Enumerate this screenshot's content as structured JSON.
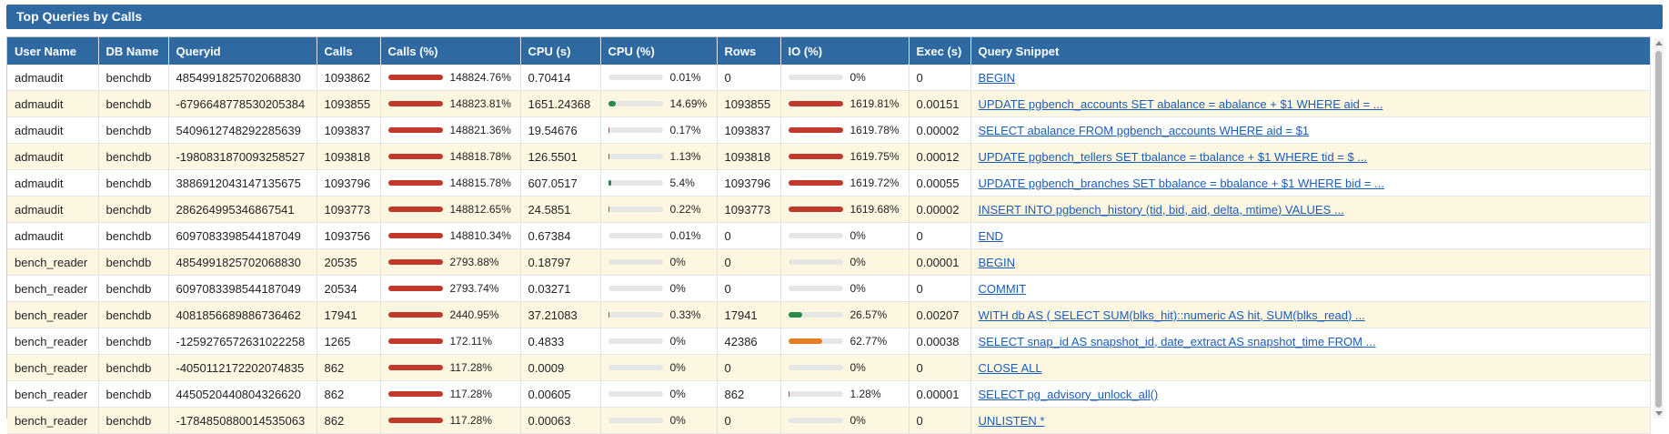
{
  "panel": {
    "title": "Top Queries by Calls"
  },
  "colors": {
    "header_bg": "#2e6aa1",
    "bar_red": "#c0392b",
    "bar_green": "#27894a",
    "bar_orange": "#e67e22",
    "row_alt": "#fdf7e2",
    "link": "#1a5dbb"
  },
  "columns": [
    "User Name",
    "DB Name",
    "Queryid",
    "Calls",
    "Calls (%)",
    "CPU (s)",
    "CPU (%)",
    "Rows",
    "IO (%)",
    "Exec (s)",
    "Query Snippet"
  ],
  "rows": [
    {
      "user": "admaudit",
      "db": "benchdb",
      "queryid": "4854991825702068830",
      "calls": "1093862",
      "calls_pct": "148824.76%",
      "calls_frac": 1,
      "calls_color": "#c0392b",
      "cpu_s": "0.70414",
      "cpu_pct": "0.01%",
      "cpu_frac": 0.0001,
      "cpu_color": "#27894a",
      "rows": "0",
      "io_pct": "0%",
      "io_frac": 0,
      "io_color": "#c0392b",
      "exec_s": "0",
      "snippet": "BEGIN"
    },
    {
      "user": "admaudit",
      "db": "benchdb",
      "queryid": "-6796648778530205384",
      "calls": "1093855",
      "calls_pct": "148823.81%",
      "calls_frac": 1,
      "calls_color": "#c0392b",
      "cpu_s": "1651.24368",
      "cpu_pct": "14.69%",
      "cpu_frac": 0.1469,
      "cpu_color": "#27894a",
      "rows": "1093855",
      "io_pct": "1619.81%",
      "io_frac": 1,
      "io_color": "#c0392b",
      "exec_s": "0.00151",
      "snippet": "UPDATE pgbench_accounts SET abalance = abalance + $1 WHERE aid = ..."
    },
    {
      "user": "admaudit",
      "db": "benchdb",
      "queryid": "5409612748292285639",
      "calls": "1093837",
      "calls_pct": "148821.36%",
      "calls_frac": 1,
      "calls_color": "#c0392b",
      "cpu_s": "19.54676",
      "cpu_pct": "0.17%",
      "cpu_frac": 0.0017,
      "cpu_color": "#27894a",
      "rows": "1093837",
      "io_pct": "1619.78%",
      "io_frac": 1,
      "io_color": "#c0392b",
      "exec_s": "0.00002",
      "snippet": "SELECT abalance FROM pgbench_accounts WHERE aid = $1"
    },
    {
      "user": "admaudit",
      "db": "benchdb",
      "queryid": "-1980831870093258527",
      "calls": "1093818",
      "calls_pct": "148818.78%",
      "calls_frac": 1,
      "calls_color": "#c0392b",
      "cpu_s": "126.5501",
      "cpu_pct": "1.13%",
      "cpu_frac": 0.0113,
      "cpu_color": "#27894a",
      "rows": "1093818",
      "io_pct": "1619.75%",
      "io_frac": 1,
      "io_color": "#c0392b",
      "exec_s": "0.00012",
      "snippet": "UPDATE pgbench_tellers SET tbalance = tbalance + $1 WHERE tid = $ ..."
    },
    {
      "user": "admaudit",
      "db": "benchdb",
      "queryid": "3886912043147135675",
      "calls": "1093796",
      "calls_pct": "148815.78%",
      "calls_frac": 1,
      "calls_color": "#c0392b",
      "cpu_s": "607.0517",
      "cpu_pct": "5.4%",
      "cpu_frac": 0.054,
      "cpu_color": "#27894a",
      "rows": "1093796",
      "io_pct": "1619.72%",
      "io_frac": 1,
      "io_color": "#c0392b",
      "exec_s": "0.00055",
      "snippet": "UPDATE pgbench_branches SET bbalance = bbalance + $1 WHERE bid = ..."
    },
    {
      "user": "admaudit",
      "db": "benchdb",
      "queryid": "286264995346867541",
      "calls": "1093773",
      "calls_pct": "148812.65%",
      "calls_frac": 1,
      "calls_color": "#c0392b",
      "cpu_s": "24.5851",
      "cpu_pct": "0.22%",
      "cpu_frac": 0.0022,
      "cpu_color": "#27894a",
      "rows": "1093773",
      "io_pct": "1619.68%",
      "io_frac": 1,
      "io_color": "#c0392b",
      "exec_s": "0.00002",
      "snippet": "INSERT INTO pgbench_history (tid, bid, aid, delta, mtime) VALUES ..."
    },
    {
      "user": "admaudit",
      "db": "benchdb",
      "queryid": "6097083398544187049",
      "calls": "1093756",
      "calls_pct": "148810.34%",
      "calls_frac": 1,
      "calls_color": "#c0392b",
      "cpu_s": "0.67384",
      "cpu_pct": "0.01%",
      "cpu_frac": 0.0001,
      "cpu_color": "#27894a",
      "rows": "0",
      "io_pct": "0%",
      "io_frac": 0,
      "io_color": "#c0392b",
      "exec_s": "0",
      "snippet": "END"
    },
    {
      "user": "bench_reader",
      "db": "benchdb",
      "queryid": "4854991825702068830",
      "calls": "20535",
      "calls_pct": "2793.88%",
      "calls_frac": 1,
      "calls_color": "#c0392b",
      "cpu_s": "0.18797",
      "cpu_pct": "0%",
      "cpu_frac": 0,
      "cpu_color": "#27894a",
      "rows": "0",
      "io_pct": "0%",
      "io_frac": 0,
      "io_color": "#c0392b",
      "exec_s": "0.00001",
      "snippet": "BEGIN"
    },
    {
      "user": "bench_reader",
      "db": "benchdb",
      "queryid": "6097083398544187049",
      "calls": "20534",
      "calls_pct": "2793.74%",
      "calls_frac": 1,
      "calls_color": "#c0392b",
      "cpu_s": "0.03271",
      "cpu_pct": "0%",
      "cpu_frac": 0,
      "cpu_color": "#27894a",
      "rows": "0",
      "io_pct": "0%",
      "io_frac": 0,
      "io_color": "#c0392b",
      "exec_s": "0",
      "snippet": "COMMIT"
    },
    {
      "user": "bench_reader",
      "db": "benchdb",
      "queryid": "4081856689886736462",
      "calls": "17941",
      "calls_pct": "2440.95%",
      "calls_frac": 1,
      "calls_color": "#c0392b",
      "cpu_s": "37.21083",
      "cpu_pct": "0.33%",
      "cpu_frac": 0.0033,
      "cpu_color": "#27894a",
      "rows": "17941",
      "io_pct": "26.57%",
      "io_frac": 0.2657,
      "io_color": "#27894a",
      "exec_s": "0.00207",
      "snippet": "WITH db AS ( SELECT SUM(blks_hit)::numeric AS hit, SUM(blks_read) ..."
    },
    {
      "user": "bench_reader",
      "db": "benchdb",
      "queryid": "-1259276572631022258",
      "calls": "1265",
      "calls_pct": "172.11%",
      "calls_frac": 1,
      "calls_color": "#c0392b",
      "cpu_s": "0.4833",
      "cpu_pct": "0%",
      "cpu_frac": 0,
      "cpu_color": "#27894a",
      "rows": "42386",
      "io_pct": "62.77%",
      "io_frac": 0.6277,
      "io_color": "#e67e22",
      "exec_s": "0.00038",
      "snippet": "SELECT snap_id AS snapshot_id, date_extract AS snapshot_time FROM ..."
    },
    {
      "user": "bench_reader",
      "db": "benchdb",
      "queryid": "-4050112172202074835",
      "calls": "862",
      "calls_pct": "117.28%",
      "calls_frac": 1,
      "calls_color": "#c0392b",
      "cpu_s": "0.0009",
      "cpu_pct": "0%",
      "cpu_frac": 0,
      "cpu_color": "#27894a",
      "rows": "0",
      "io_pct": "0%",
      "io_frac": 0,
      "io_color": "#c0392b",
      "exec_s": "0",
      "snippet": "CLOSE ALL"
    },
    {
      "user": "bench_reader",
      "db": "benchdb",
      "queryid": "4450520440804326620",
      "calls": "862",
      "calls_pct": "117.28%",
      "calls_frac": 1,
      "calls_color": "#c0392b",
      "cpu_s": "0.00605",
      "cpu_pct": "0%",
      "cpu_frac": 0,
      "cpu_color": "#27894a",
      "rows": "862",
      "io_pct": "1.28%",
      "io_frac": 0.0128,
      "io_color": "#27894a",
      "exec_s": "0.00001",
      "snippet": "SELECT pg_advisory_unlock_all()"
    },
    {
      "user": "bench_reader",
      "db": "benchdb",
      "queryid": "-1784850880014535063",
      "calls": "862",
      "calls_pct": "117.28%",
      "calls_frac": 1,
      "calls_color": "#c0392b",
      "cpu_s": "0.00063",
      "cpu_pct": "0%",
      "cpu_frac": 0,
      "cpu_color": "#27894a",
      "rows": "0",
      "io_pct": "0%",
      "io_frac": 0,
      "io_color": "#c0392b",
      "exec_s": "0",
      "snippet": "UNLISTEN *"
    }
  ]
}
